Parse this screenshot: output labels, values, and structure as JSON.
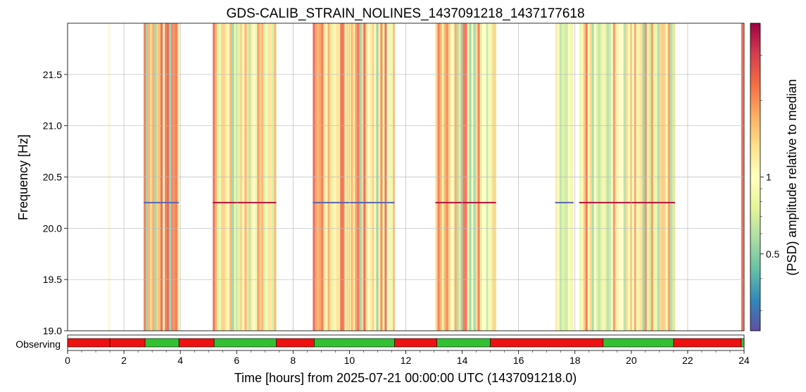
{
  "chart_data": [
    {
      "type": "heatmap",
      "title": "GDS-CALIB_STRAIN_NOLINES_1437091218_1437177618",
      "xlabel": "Time [hours] from 2025-07-21 00:00:00 UTC (1437091218.0)",
      "ylabel": "Frequency [Hz]",
      "x_ticks": [
        "0",
        "2",
        "4",
        "6",
        "8",
        "10",
        "12",
        "14",
        "16",
        "18",
        "20",
        "22",
        "24"
      ],
      "y_ticks": [
        "19.0",
        "19.5",
        "20.0",
        "20.5",
        "21.0",
        "21.5"
      ],
      "xlim": [
        0,
        24
      ],
      "ylim": [
        19.0,
        22.0
      ],
      "grid": true,
      "colorbar": {
        "label": "(PSD) amplitude relative to median",
        "scale": "log",
        "ticks": [
          "1",
          "0.5"
        ],
        "tick_values": [
          1,
          0.5
        ],
        "range": [
          0.25,
          4
        ],
        "colormap": "Spectral_r"
      },
      "data_intervals_hours": [
        [
          1.45,
          1.5
        ],
        [
          2.7,
          3.95
        ],
        [
          5.15,
          7.4
        ],
        [
          8.7,
          11.6
        ],
        [
          13.05,
          15.2
        ],
        [
          17.3,
          17.95
        ],
        [
          18.15,
          21.55
        ],
        [
          23.9,
          24.0
        ]
      ],
      "line_feature_hz": 20.25,
      "line_feature_intervals_hours": [
        [
          2.7,
          3.95
        ],
        [
          5.15,
          7.4
        ],
        [
          8.7,
          11.6
        ],
        [
          13.05,
          15.2
        ],
        [
          17.3,
          17.95
        ],
        [
          18.15,
          21.55
        ]
      ]
    },
    {
      "type": "bar",
      "segment_label": "Observing",
      "active_color": "#33c033",
      "inactive_color": "#ee1111",
      "segments_hours": [
        {
          "start": 0.0,
          "end": 1.5,
          "active": false
        },
        {
          "start": 1.5,
          "end": 2.75,
          "active": false
        },
        {
          "start": 2.75,
          "end": 3.95,
          "active": true
        },
        {
          "start": 3.95,
          "end": 5.2,
          "active": false
        },
        {
          "start": 5.2,
          "end": 7.4,
          "active": true
        },
        {
          "start": 7.4,
          "end": 8.75,
          "active": false
        },
        {
          "start": 8.75,
          "end": 11.6,
          "active": true
        },
        {
          "start": 11.6,
          "end": 13.1,
          "active": false
        },
        {
          "start": 13.1,
          "end": 15.0,
          "active": true
        },
        {
          "start": 15.0,
          "end": 19.0,
          "active": false
        },
        {
          "start": 19.0,
          "end": 21.5,
          "active": true
        },
        {
          "start": 21.5,
          "end": 23.9,
          "active": false
        },
        {
          "start": 23.9,
          "end": 24.0,
          "active": true
        }
      ]
    }
  ]
}
